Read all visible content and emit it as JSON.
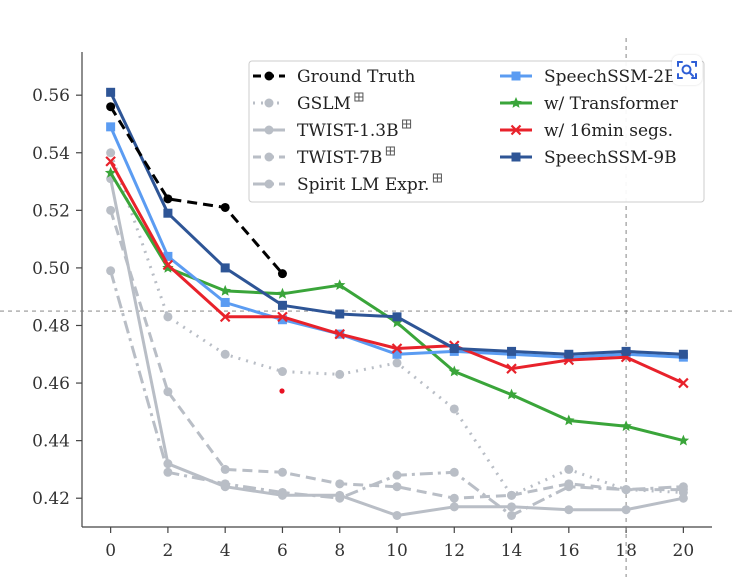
{
  "chart_data": {
    "type": "line",
    "title": "",
    "xlabel": "",
    "ylabel": "",
    "xlim": [
      -1,
      21
    ],
    "ylim": [
      0.41,
      0.575
    ],
    "x_ticks": [
      0,
      2,
      4,
      6,
      8,
      10,
      12,
      14,
      16,
      18,
      20
    ],
    "y_ticks": [
      0.42,
      0.44,
      0.46,
      0.48,
      0.5,
      0.52,
      0.54,
      0.56
    ],
    "y_tick_labels": [
      "0.42",
      "0.44",
      "0.46",
      "0.48",
      "0.50",
      "0.52",
      "0.54",
      "0.56"
    ],
    "grid": false,
    "reference_lines": {
      "x": 18,
      "y": 0.485
    },
    "legend_placement": "top-right",
    "series": [
      {
        "name": "Ground Truth",
        "color": "#000000",
        "dash": "dashed",
        "marker": "circle",
        "x": [
          0,
          2,
          4,
          6
        ],
        "y": [
          0.556,
          0.524,
          0.521,
          0.498
        ]
      },
      {
        "name": "GSLM",
        "color": "#b9bec6",
        "dash": "dotted",
        "marker": "circle",
        "suffix_icon": "snowflake-icon",
        "x": [
          0,
          2,
          4,
          6,
          8,
          10,
          12,
          14,
          16,
          18,
          20
        ],
        "y": [
          0.54,
          0.483,
          0.47,
          0.464,
          0.463,
          0.467,
          0.451,
          0.421,
          0.43,
          0.423,
          0.422
        ]
      },
      {
        "name": "TWIST-1.3B",
        "color": "#b9bec6",
        "dash": "solid",
        "marker": "circle",
        "suffix_icon": "snowflake-icon",
        "x": [
          0,
          2,
          4,
          6,
          8,
          10,
          12,
          14,
          16,
          18,
          20
        ],
        "y": [
          0.531,
          0.432,
          0.424,
          0.421,
          0.421,
          0.414,
          0.417,
          0.417,
          0.416,
          0.416,
          0.42
        ]
      },
      {
        "name": "TWIST-7B",
        "color": "#b9bec6",
        "dash": "dashed",
        "marker": "circle",
        "suffix_icon": "snowflake-icon",
        "x": [
          0,
          2,
          4,
          6,
          8,
          10,
          12,
          14,
          16,
          18,
          20
        ],
        "y": [
          0.52,
          0.457,
          0.43,
          0.429,
          0.425,
          0.424,
          0.42,
          0.421,
          0.425,
          0.423,
          0.423
        ]
      },
      {
        "name": "Spirit LM Expr.",
        "color": "#b9bec6",
        "dash": "dashdot",
        "marker": "circle",
        "suffix_icon": "snowflake-icon",
        "x": [
          0,
          2,
          4,
          6,
          8,
          10,
          12,
          14,
          16,
          18,
          20
        ],
        "y": [
          0.499,
          0.429,
          0.425,
          0.422,
          0.42,
          0.428,
          0.429,
          0.414,
          0.424,
          0.423,
          0.424
        ]
      },
      {
        "name": "SpeechSSM-2B",
        "color": "#5b9cf2",
        "dash": "solid",
        "marker": "square",
        "x": [
          0,
          2,
          4,
          6,
          8,
          10,
          12,
          14,
          16,
          18,
          20
        ],
        "y": [
          0.549,
          0.504,
          0.488,
          0.482,
          0.477,
          0.47,
          0.471,
          0.47,
          0.469,
          0.47,
          0.469
        ]
      },
      {
        "name": "w/ Transformer",
        "color": "#3aa53a",
        "dash": "solid",
        "marker": "star",
        "x": [
          0,
          2,
          4,
          6,
          8,
          10,
          12,
          14,
          16,
          18,
          20
        ],
        "y": [
          0.533,
          0.5,
          0.492,
          0.491,
          0.494,
          0.481,
          0.464,
          0.456,
          0.447,
          0.445,
          0.44
        ]
      },
      {
        "name": "w/ 16min segs.",
        "color": "#e8222b",
        "dash": "solid",
        "marker": "x",
        "x": [
          0,
          2,
          4,
          6,
          8,
          10,
          12,
          14,
          16,
          18,
          20
        ],
        "y": [
          0.537,
          0.501,
          0.483,
          0.483,
          0.477,
          0.472,
          0.473,
          0.465,
          0.468,
          0.469,
          0.46
        ]
      },
      {
        "name": "SpeechSSM-9B",
        "color": "#2e5596",
        "dash": "solid",
        "marker": "square",
        "x": [
          0,
          2,
          4,
          6,
          8,
          10,
          12,
          14,
          16,
          18,
          20
        ],
        "y": [
          0.561,
          0.519,
          0.5,
          0.487,
          0.484,
          0.483,
          0.472,
          0.471,
          0.47,
          0.471,
          0.47
        ]
      }
    ]
  },
  "legend": {
    "col1": [
      "Ground Truth",
      "GSLM",
      "TWIST-1.3B",
      "TWIST-7B",
      "Spirit LM Expr."
    ],
    "col2": [
      "SpeechSSM-2B",
      "w/ Transformer",
      "w/ 16min segs.",
      "SpeechSSM-9B"
    ]
  },
  "overlay": {
    "lens_icon": "visual-search-icon",
    "red_dot_color": "#e81123"
  }
}
